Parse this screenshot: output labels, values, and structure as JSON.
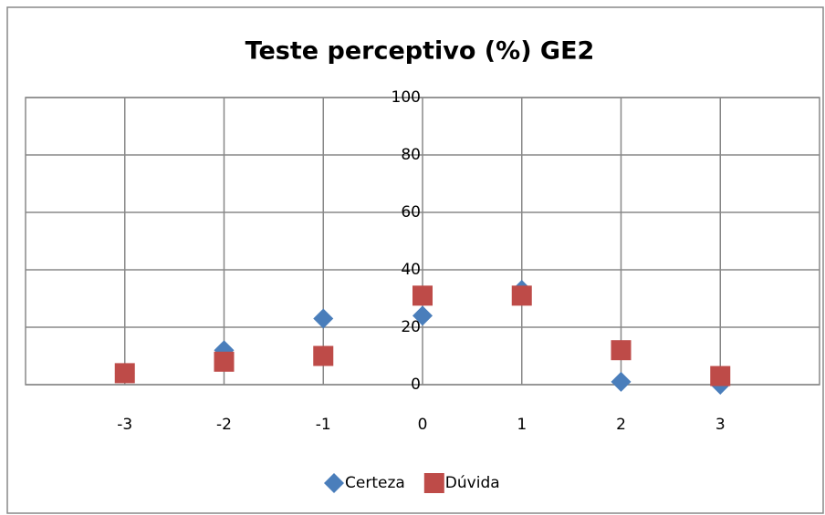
{
  "chart_data": {
    "type": "scatter",
    "title": "Teste perceptivo (%) GE2",
    "x": [
      -3,
      -2,
      -1,
      0,
      1,
      2,
      3
    ],
    "series": [
      {
        "name": "Certeza",
        "color": "#4a7ebb",
        "marker": "diamond",
        "values": [
          4,
          12,
          23,
          24,
          33,
          1,
          0
        ]
      },
      {
        "name": "Dúvida",
        "color": "#be4b48",
        "marker": "square",
        "values": [
          4,
          8,
          10,
          31,
          31,
          12,
          3
        ]
      }
    ],
    "xlim": [
      -4,
      4
    ],
    "xticks": [
      -3,
      -2,
      -1,
      0,
      1,
      2,
      3
    ],
    "ylim": [
      0,
      100
    ],
    "yticks": [
      0,
      20,
      40,
      60,
      80,
      100
    ],
    "grid": true,
    "legend": "bottom"
  }
}
